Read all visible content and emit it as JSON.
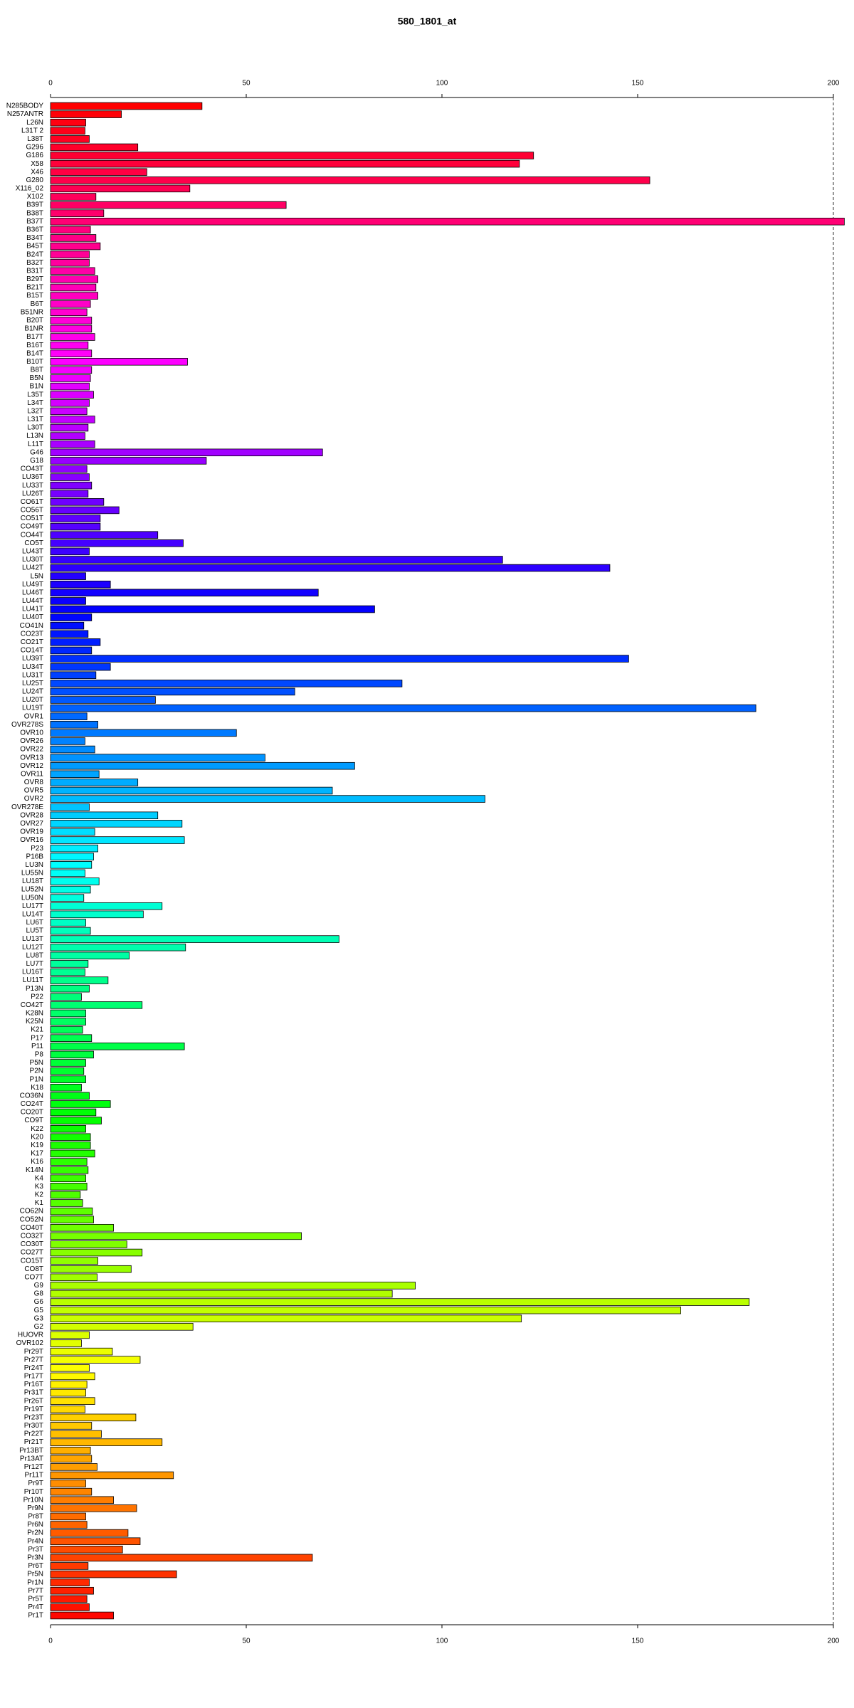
{
  "chart_data": {
    "type": "barh",
    "title": "580_1801_at",
    "categories": [
      "N285BODY",
      "N257ANTR",
      "L26N",
      "L31T 2",
      "L38T",
      "G296",
      "G186",
      "X58",
      "X46",
      "G280",
      "X116_02",
      "X102",
      "B39T",
      "B38T",
      "B37T",
      "B36T",
      "B34T",
      "B45T",
      "B24T",
      "B32T",
      "B31T",
      "B29T",
      "B21T",
      "B15T",
      "B6T",
      "B51NR",
      "B20T",
      "B1NR",
      "B17T",
      "B16T",
      "B14T",
      "B10T",
      "B8T",
      "B5N",
      "B1N",
      "L35T",
      "L34T",
      "L32T",
      "L31T",
      "L30T",
      "L13N",
      "L11T",
      "G46",
      "G18",
      "CO43T",
      "LU36T",
      "LU33T",
      "LU26T",
      "CO61T",
      "CO56T",
      "CO51T",
      "CO49T",
      "CO44T",
      "CO5T",
      "LU43T",
      "LU30T",
      "LU42T",
      "L5N",
      "LU49T",
      "LU46T",
      "LU44T",
      "LU41T",
      "LU40T",
      "CO41N",
      "CO23T",
      "CO21T",
      "CO14T",
      "LU39T",
      "LU34T",
      "LU31T",
      "LU25T",
      "LU24T",
      "LU20T",
      "LU19T",
      "OVR1",
      "OVR278S",
      "OVR10",
      "OVR26",
      "OVR22",
      "OVR13",
      "OVR12",
      "OVR11",
      "OVR8",
      "OVR5",
      "OVR2",
      "OVR278E",
      "OVR28",
      "OVR27",
      "OVR19",
      "OVR16",
      "P23",
      "P16B",
      "LU3N",
      "LU55N",
      "LU18T",
      "LU52N",
      "LU50N",
      "LU17T",
      "LU14T",
      "LU6T",
      "LU5T",
      "LU13T",
      "LU12T",
      "LU8T",
      "LU7T",
      "LU16T",
      "LU11T",
      "P13N",
      "P22",
      "CO42T",
      "K28N",
      "K25N",
      "K21",
      "P17",
      "P11",
      "P8",
      "P5N",
      "P2N",
      "P1N",
      "K18",
      "CO36N",
      "CO24T",
      "CO20T",
      "CO9T",
      "K22",
      "K20",
      "K19",
      "K17",
      "K16",
      "K14N",
      "K4",
      "K3",
      "K2",
      "K1",
      "CO62N",
      "CO52N",
      "CO40T",
      "CO32T",
      "CO30T",
      "CO27T",
      "CO15T",
      "CO8T",
      "CO7T",
      "G9",
      "G8",
      "G6",
      "G5",
      "G3",
      "G2",
      "HUOVR",
      "OVR102",
      "Pr29T",
      "Pr27T",
      "Pr24T",
      "Pr17T",
      "Pr16T",
      "Pr31T",
      "Pr26T",
      "Pr19T",
      "Pr23T",
      "Pr30T",
      "Pr22T",
      "Pr21T",
      "Pr13BT",
      "Pr13AT",
      "Pr12T",
      "Pr11T",
      "Pr9T",
      "Pr10T",
      "Pr10N",
      "Pr9N",
      "Pr8T",
      "Pr6N",
      "Pr2N",
      "Pr4N",
      "Pr3T",
      "Pr3N",
      "Pr6T",
      "Pr5N",
      "Pr1N",
      "Pr7T",
      "Pr5T",
      "Pr4T",
      "Pr1T"
    ],
    "values": [
      38.7,
      18.1,
      9.0,
      8.8,
      9.9,
      22.3,
      123.4,
      119.8,
      24.6,
      153.1,
      35.6,
      11.6,
      60.2,
      13.6,
      202.8,
      10.2,
      11.6,
      12.7,
      9.9,
      9.9,
      11.3,
      12.1,
      11.6,
      12.1,
      10.2,
      9.3,
      10.5,
      10.5,
      11.3,
      9.6,
      10.5,
      35.0,
      10.5,
      10.2,
      9.9,
      11.0,
      9.9,
      9.3,
      11.3,
      9.6,
      8.8,
      11.3,
      69.5,
      39.8,
      9.3,
      9.9,
      10.5,
      9.6,
      13.6,
      17.5,
      12.7,
      12.7,
      27.4,
      33.9,
      9.9,
      115.5,
      142.9,
      9.0,
      15.3,
      68.4,
      9.0,
      82.8,
      10.5,
      8.5,
      9.6,
      12.7,
      10.5,
      147.7,
      15.3,
      11.6,
      89.8,
      62.4,
      26.8,
      180.2,
      9.3,
      12.1,
      47.5,
      8.8,
      11.3,
      54.8,
      77.7,
      12.4,
      22.3,
      72.0,
      111.0,
      9.9,
      27.4,
      33.6,
      11.3,
      34.2,
      12.1,
      11.0,
      10.5,
      8.8,
      12.4,
      10.2,
      8.5,
      28.5,
      23.7,
      9.0,
      10.2,
      73.7,
      34.5,
      20.1,
      9.6,
      8.8,
      14.7,
      9.9,
      7.9,
      23.4,
      9.0,
      9.0,
      8.2,
      10.5,
      34.2,
      11.0,
      9.0,
      8.5,
      9.0,
      7.9,
      9.9,
      15.3,
      11.6,
      13.0,
      9.0,
      10.2,
      10.2,
      11.3,
      9.3,
      9.6,
      9.0,
      9.3,
      7.6,
      8.2,
      10.7,
      11.0,
      16.1,
      64.1,
      19.5,
      23.4,
      12.1,
      20.6,
      11.9,
      93.2,
      87.3,
      178.5,
      161.0,
      120.3,
      36.4,
      9.9,
      7.9,
      15.8,
      22.9,
      9.9,
      11.3,
      9.3,
      9.0,
      11.3,
      8.8,
      21.8,
      10.5,
      13.0,
      28.5,
      10.2,
      10.5,
      11.9,
      31.4,
      9.0,
      10.5,
      16.1,
      22.0,
      9.0,
      9.3,
      19.8,
      22.9,
      18.4,
      66.9,
      9.6,
      32.2,
      9.9,
      11.0,
      9.3,
      9.9,
      16.1
    ],
    "colormap": "rainbow",
    "colormap_reversed": true,
    "xlim": [
      0,
      203
    ],
    "xticks": [
      0,
      50,
      100,
      150,
      200
    ],
    "vline": 200
  }
}
